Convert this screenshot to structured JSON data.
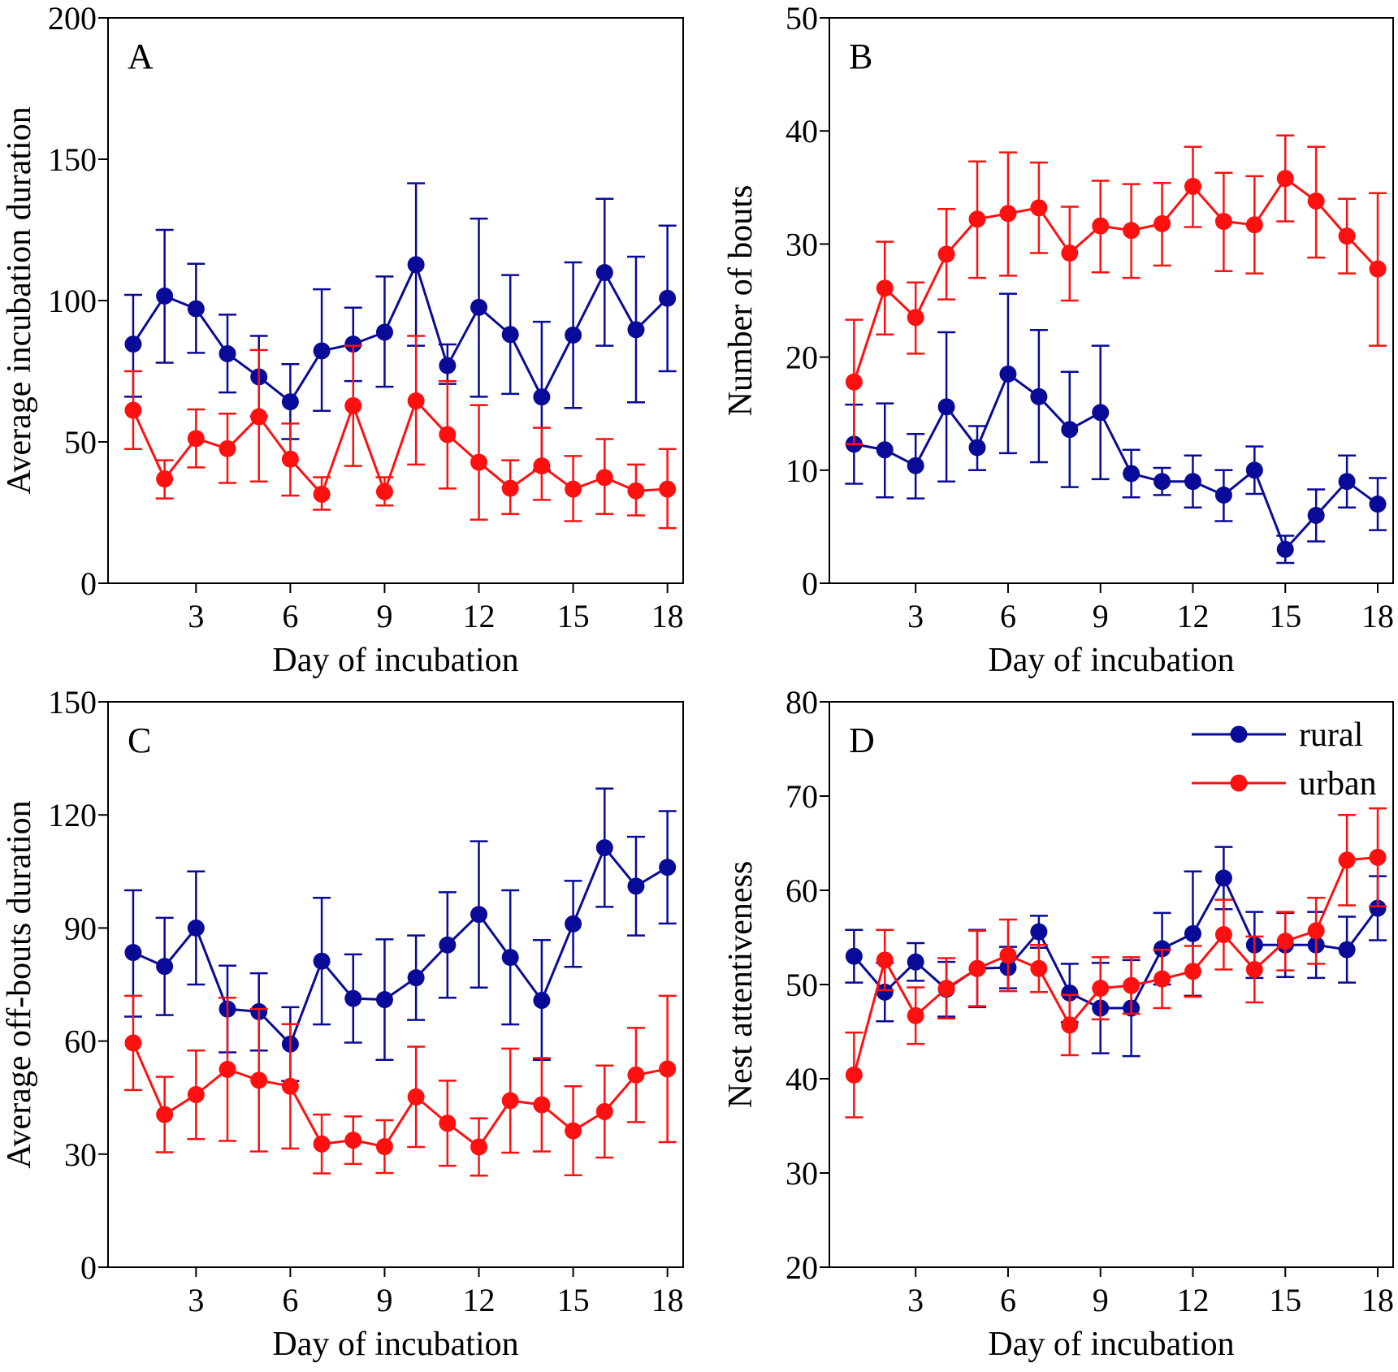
{
  "colors": {
    "rural": "#0a0a99",
    "urban": "#ff1010"
  },
  "legend": {
    "panel": "D",
    "entries": [
      {
        "key": "rural",
        "label": "rural"
      },
      {
        "key": "urban",
        "label": "urban"
      }
    ]
  },
  "chart_data": [
    {
      "type": "line",
      "panel_label": "A",
      "xlabel": "Day of incubation",
      "ylabel": "Average incubation duration",
      "xlim": [
        0.2,
        18.5
      ],
      "ylim": [
        0,
        200
      ],
      "xticks": [
        3,
        6,
        9,
        12,
        15,
        18
      ],
      "yticks": [
        0,
        50,
        100,
        150,
        200
      ],
      "x": [
        1,
        2,
        3,
        4,
        5,
        6,
        7,
        8,
        9,
        10,
        11,
        12,
        13,
        14,
        15,
        16,
        17,
        18
      ],
      "series": [
        {
          "key": "rural",
          "values": [
            84.6,
            101.6,
            97.1,
            81.2,
            73.0,
            64.2,
            82.2,
            84.6,
            88.8,
            112.7,
            77.0,
            97.6,
            88.0,
            65.9,
            87.8,
            109.9,
            89.7,
            100.8
          ],
          "err_high": [
            102.0,
            125.0,
            113.0,
            95.0,
            87.5,
            77.5,
            104.0,
            97.5,
            108.5,
            141.5,
            84.5,
            129.0,
            109.0,
            92.5,
            113.5,
            136.0,
            115.5,
            126.5
          ],
          "err_low": [
            66.0,
            78.0,
            81.5,
            67.5,
            59.0,
            51.0,
            61.0,
            71.5,
            69.5,
            84.0,
            70.5,
            66.0,
            67.0,
            40.0,
            62.0,
            84.0,
            64.0,
            75.0
          ]
        },
        {
          "key": "urban",
          "values": [
            61.2,
            36.9,
            51.2,
            47.6,
            58.9,
            43.9,
            31.5,
            62.8,
            32.4,
            64.5,
            52.6,
            42.8,
            33.6,
            41.5,
            33.3,
            37.4,
            32.7,
            33.3
          ],
          "err_high": [
            75.0,
            43.5,
            61.5,
            60.0,
            82.5,
            56.5,
            37.5,
            84.0,
            37.5,
            87.5,
            71.5,
            63.0,
            43.5,
            55.0,
            45.0,
            51.0,
            42.0,
            47.5
          ],
          "err_low": [
            47.5,
            30.0,
            41.0,
            35.5,
            36.0,
            31.0,
            26.0,
            41.5,
            27.5,
            42.0,
            33.5,
            22.5,
            24.5,
            29.5,
            22.0,
            24.5,
            24.0,
            19.5
          ]
        }
      ]
    },
    {
      "type": "line",
      "panel_label": "B",
      "xlabel": "Day of incubation",
      "ylabel": "Number of bouts",
      "xlim": [
        0.2,
        18.5
      ],
      "ylim": [
        0,
        50
      ],
      "xticks": [
        3,
        6,
        9,
        12,
        15,
        18
      ],
      "yticks": [
        0,
        10,
        20,
        30,
        40,
        50
      ],
      "x": [
        1,
        2,
        3,
        4,
        5,
        6,
        7,
        8,
        9,
        10,
        11,
        12,
        13,
        14,
        15,
        16,
        17,
        18
      ],
      "series": [
        {
          "key": "rural",
          "values": [
            12.3,
            11.8,
            10.4,
            15.6,
            12.0,
            18.5,
            16.5,
            13.6,
            15.1,
            9.7,
            9.0,
            9.0,
            7.8,
            10.0,
            3.0,
            6.0,
            9.0,
            7.0
          ],
          "err_high": [
            15.8,
            15.9,
            13.2,
            22.2,
            13.9,
            25.6,
            22.4,
            18.7,
            21.0,
            11.8,
            10.2,
            11.3,
            10.0,
            12.1,
            4.2,
            8.3,
            11.3,
            9.3
          ],
          "err_low": [
            8.8,
            7.6,
            7.5,
            9.0,
            10.0,
            11.5,
            10.7,
            8.5,
            9.2,
            7.6,
            7.8,
            6.7,
            5.5,
            7.9,
            1.8,
            3.7,
            6.7,
            4.7
          ]
        },
        {
          "key": "urban",
          "values": [
            17.8,
            26.1,
            23.5,
            29.1,
            32.2,
            32.7,
            33.2,
            29.2,
            31.6,
            31.2,
            31.8,
            35.1,
            32.0,
            31.7,
            35.8,
            33.8,
            30.7,
            27.8
          ],
          "err_high": [
            23.3,
            30.2,
            26.6,
            33.1,
            37.3,
            38.1,
            37.2,
            33.3,
            35.6,
            35.3,
            35.4,
            38.6,
            36.3,
            36.0,
            39.6,
            38.6,
            34.0,
            34.5
          ],
          "err_low": [
            12.3,
            22.0,
            20.3,
            25.1,
            27.0,
            27.2,
            29.2,
            25.0,
            27.5,
            27.0,
            28.1,
            31.5,
            27.6,
            27.4,
            32.0,
            28.8,
            27.4,
            21.0
          ]
        }
      ]
    },
    {
      "type": "line",
      "panel_label": "C",
      "xlabel": "Day of incubation",
      "ylabel": "Average off-bouts duration",
      "xlim": [
        0.2,
        18.5
      ],
      "ylim": [
        0,
        150
      ],
      "xticks": [
        3,
        6,
        9,
        12,
        15,
        18
      ],
      "yticks": [
        0,
        30,
        60,
        90,
        120,
        150
      ],
      "x": [
        1,
        2,
        3,
        4,
        5,
        6,
        7,
        8,
        9,
        10,
        11,
        12,
        13,
        14,
        15,
        16,
        17,
        18
      ],
      "series": [
        {
          "key": "rural",
          "values": [
            83.5,
            79.8,
            90.0,
            68.5,
            67.8,
            59.2,
            81.2,
            71.3,
            71.0,
            76.8,
            85.5,
            93.6,
            82.2,
            70.8,
            91.1,
            111.3,
            101.1,
            106.1
          ],
          "err_high": [
            100.0,
            92.7,
            105.0,
            80.0,
            78.0,
            69.0,
            98.0,
            83.0,
            87.0,
            88.0,
            99.5,
            113.0,
            100.0,
            86.8,
            102.5,
            127.0,
            114.2,
            121.0
          ],
          "err_low": [
            66.5,
            66.9,
            75.0,
            57.0,
            57.5,
            49.4,
            64.4,
            59.6,
            55.0,
            65.6,
            71.5,
            74.2,
            64.4,
            55.0,
            79.7,
            95.6,
            88.0,
            91.2
          ]
        },
        {
          "key": "urban",
          "values": [
            59.5,
            40.5,
            45.8,
            52.5,
            49.6,
            48.0,
            32.7,
            33.7,
            32.0,
            45.2,
            38.2,
            31.9,
            44.2,
            43.1,
            36.2,
            41.3,
            51.0,
            52.6
          ],
          "err_high": [
            72.0,
            50.5,
            57.5,
            71.5,
            68.5,
            64.5,
            40.5,
            40.0,
            39.0,
            58.5,
            49.5,
            39.5,
            58.0,
            55.5,
            48.0,
            53.5,
            63.5,
            72.0
          ],
          "err_low": [
            47.0,
            30.5,
            34.0,
            33.5,
            30.7,
            31.5,
            24.9,
            27.4,
            25.0,
            31.9,
            26.9,
            24.3,
            30.4,
            30.7,
            24.4,
            29.1,
            38.5,
            33.2
          ]
        }
      ]
    },
    {
      "type": "line",
      "panel_label": "D",
      "xlabel": "Day of incubation",
      "ylabel": "Nest attentiveness",
      "xlim": [
        0.2,
        18.5
      ],
      "ylim": [
        20,
        80
      ],
      "xticks": [
        3,
        6,
        9,
        12,
        15,
        18
      ],
      "yticks": [
        20,
        30,
        40,
        50,
        60,
        70,
        80
      ],
      "x": [
        1,
        2,
        3,
        4,
        5,
        6,
        7,
        8,
        9,
        10,
        11,
        12,
        13,
        14,
        15,
        16,
        17,
        18
      ],
      "series": [
        {
          "key": "rural",
          "values": [
            53.0,
            49.2,
            52.4,
            49.5,
            51.7,
            51.8,
            55.6,
            49.1,
            47.5,
            47.5,
            53.8,
            55.4,
            61.3,
            54.2,
            54.2,
            54.2,
            53.7,
            58.1
          ],
          "err_high": [
            55.8,
            52.3,
            54.4,
            52.4,
            55.8,
            54.0,
            57.3,
            52.2,
            52.3,
            52.6,
            57.6,
            62.0,
            64.6,
            57.7,
            57.6,
            57.7,
            57.2,
            61.5
          ],
          "err_low": [
            50.2,
            46.1,
            50.4,
            46.6,
            47.6,
            49.6,
            53.9,
            46.0,
            42.7,
            42.4,
            50.0,
            48.8,
            58.0,
            50.7,
            50.8,
            50.7,
            50.2,
            54.7
          ]
        },
        {
          "key": "urban",
          "values": [
            40.4,
            52.6,
            46.7,
            49.6,
            51.7,
            53.1,
            51.7,
            45.7,
            49.6,
            49.9,
            50.6,
            51.4,
            55.3,
            51.6,
            54.6,
            55.7,
            63.2,
            63.5
          ],
          "err_high": [
            44.9,
            55.8,
            49.7,
            52.8,
            55.7,
            56.9,
            54.2,
            48.9,
            52.9,
            52.9,
            53.7,
            54.1,
            59.0,
            55.1,
            57.7,
            59.2,
            68.0,
            68.7
          ],
          "err_low": [
            35.9,
            49.4,
            43.7,
            46.4,
            47.7,
            49.3,
            49.2,
            42.5,
            46.3,
            46.9,
            47.5,
            48.7,
            51.6,
            48.1,
            51.5,
            52.2,
            58.4,
            58.3
          ]
        }
      ]
    }
  ]
}
